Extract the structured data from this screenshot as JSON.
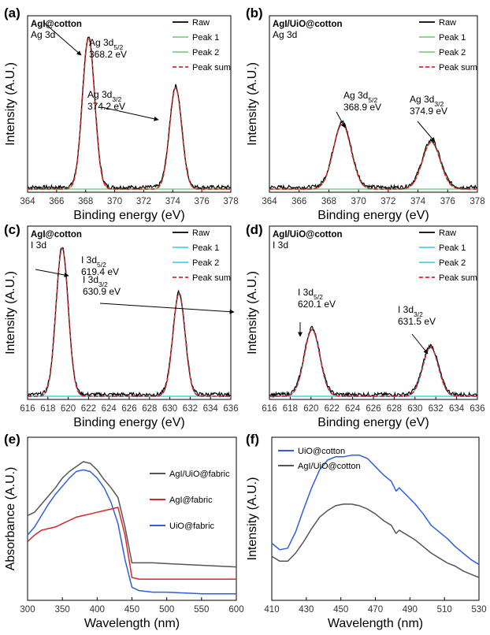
{
  "chart_data": [
    {
      "panel": "(a)",
      "type": "line",
      "sample": "AgI@cotton",
      "region": "Ag 3d",
      "xlabel": "Binding energy (eV)",
      "ylabel": "Intensity (A.U.)",
      "xlim": [
        364,
        378
      ],
      "xticks": [
        "364",
        "366",
        "368",
        "370",
        "372",
        "374",
        "376",
        "378"
      ],
      "peaks": [
        {
          "label_main": "Ag 3d",
          "label_sub": "5/2",
          "label_energy": "368.2 eV",
          "center": 368.2,
          "height": 1.0,
          "width": 0.42
        },
        {
          "label_main": "Ag 3d",
          "label_sub": "3/2",
          "label_energy": "374.2 eV",
          "center": 374.2,
          "height": 0.67,
          "width": 0.42
        }
      ],
      "legend": [
        "Raw",
        "Peak 1",
        "Peak 2",
        "Peak sum"
      ],
      "colors": {
        "raw": "#000000",
        "peak1": "#7fd17f",
        "peak2": "#7fd17f",
        "sum": "#e0262b"
      }
    },
    {
      "panel": "(b)",
      "type": "line",
      "sample": "AgI/UiO@cotton",
      "region": "Ag 3d",
      "xlabel": "Binding energy (eV)",
      "ylabel": "Intensity (A.U.)",
      "xlim": [
        364,
        378
      ],
      "xticks": [
        "364",
        "366",
        "368",
        "370",
        "372",
        "374",
        "376",
        "378"
      ],
      "peaks": [
        {
          "label_main": "Ag 3d",
          "label_sub": "5/2",
          "label_energy": "368.9 eV",
          "center": 368.9,
          "height": 0.43,
          "width": 0.6
        },
        {
          "label_main": "Ag 3d",
          "label_sub": "3/2",
          "label_energy": "374.9 eV",
          "center": 374.9,
          "height": 0.31,
          "width": 0.6
        }
      ],
      "legend": [
        "Raw",
        "Peak 1",
        "Peak 2",
        "Peak sum"
      ],
      "colors": {
        "raw": "#000000",
        "peak1": "#7fd17f",
        "peak2": "#7fd17f",
        "sum": "#e0262b"
      }
    },
    {
      "panel": "(c)",
      "type": "line",
      "sample": "AgI@cotton",
      "region": "I 3d",
      "xlabel": "Binding energy (eV)",
      "ylabel": "Intensity (A.U.)",
      "xlim": [
        616,
        636
      ],
      "xticks": [
        "616",
        "618",
        "620",
        "622",
        "624",
        "626",
        "628",
        "630",
        "632",
        "634",
        "636"
      ],
      "peaks": [
        {
          "label_main": "I 3d",
          "label_sub": "5/2",
          "label_energy": "619.4 eV",
          "center": 619.4,
          "height": 1.0,
          "width": 0.6
        },
        {
          "label_main": "I 3d",
          "label_sub": "3/2",
          "label_energy": "630.9 eV",
          "center": 630.9,
          "height": 0.69,
          "width": 0.6
        }
      ],
      "legend": [
        "Raw",
        "Peak 1",
        "Peak 2",
        "Peak sum"
      ],
      "colors": {
        "raw": "#000000",
        "peak1": "#49d2e8",
        "peak2": "#49d2e8",
        "sum": "#e0262b"
      }
    },
    {
      "panel": "(d)",
      "type": "line",
      "sample": "AgI/UiO@cotton",
      "region": "I 3d",
      "xlabel": "Binding energy (eV)",
      "ylabel": "Intensity (A.U.)",
      "xlim": [
        616,
        636
      ],
      "xticks": [
        "616",
        "618",
        "620",
        "622",
        "624",
        "626",
        "628",
        "630",
        "632",
        "634",
        "636"
      ],
      "peaks": [
        {
          "label_main": "I 3d",
          "label_sub": "5/2",
          "label_energy": "620.1 eV",
          "center": 620.1,
          "height": 0.45,
          "width": 0.75
        },
        {
          "label_main": "I 3d",
          "label_sub": "3/2",
          "label_energy": "631.5 eV",
          "center": 631.5,
          "height": 0.33,
          "width": 0.75
        }
      ],
      "legend": [
        "Raw",
        "Peak 1",
        "Peak 2",
        "Peak sum"
      ],
      "colors": {
        "raw": "#000000",
        "peak1": "#49d2e8",
        "peak2": "#49d2e8",
        "sum": "#e0262b"
      }
    },
    {
      "panel": "(e)",
      "type": "line",
      "xlabel": "Wavelength (nm)",
      "ylabel": "Absorbance (A.U.)",
      "xlim": [
        300,
        600
      ],
      "ylim": [
        0,
        1
      ],
      "xticks": [
        "300",
        "350",
        "400",
        "450",
        "500",
        "550",
        "600"
      ],
      "legend": [
        "AgI/UiO@fabric",
        "AgI@fabric",
        "UiO@fabric"
      ],
      "series": [
        {
          "name": "AgI/UiO@fabric",
          "color": "#555555",
          "x": [
            300,
            310,
            320,
            330,
            340,
            350,
            360,
            370,
            380,
            390,
            400,
            410,
            420,
            430,
            440,
            450,
            460,
            480,
            500,
            550,
            600
          ],
          "y": [
            0.52,
            0.54,
            0.59,
            0.64,
            0.69,
            0.75,
            0.79,
            0.82,
            0.85,
            0.84,
            0.8,
            0.74,
            0.69,
            0.63,
            0.45,
            0.23,
            0.23,
            0.23,
            0.225,
            0.215,
            0.205
          ]
        },
        {
          "name": "AgI@fabric",
          "color": "#d62728",
          "x": [
            300,
            310,
            320,
            330,
            340,
            350,
            360,
            370,
            380,
            390,
            400,
            410,
            420,
            430,
            440,
            450,
            460,
            480,
            500,
            550,
            600
          ],
          "y": [
            0.36,
            0.4,
            0.43,
            0.44,
            0.45,
            0.47,
            0.49,
            0.51,
            0.52,
            0.53,
            0.54,
            0.55,
            0.56,
            0.57,
            0.4,
            0.14,
            0.13,
            0.13,
            0.13,
            0.13,
            0.13
          ]
        },
        {
          "name": "UiO@fabric",
          "color": "#2f5fe0",
          "x": [
            300,
            310,
            320,
            330,
            340,
            350,
            360,
            370,
            380,
            390,
            400,
            410,
            420,
            430,
            440,
            450,
            460,
            480,
            500,
            550,
            600
          ],
          "y": [
            0.4,
            0.45,
            0.52,
            0.59,
            0.65,
            0.7,
            0.75,
            0.79,
            0.8,
            0.79,
            0.75,
            0.69,
            0.6,
            0.47,
            0.25,
            0.08,
            0.06,
            0.05,
            0.05,
            0.04,
            0.04
          ]
        }
      ]
    },
    {
      "panel": "(f)",
      "type": "line",
      "xlabel": "Wavelength (nm)",
      "ylabel": "Intensity (A.U.)",
      "xlim": [
        410,
        540
      ],
      "ylim": [
        0,
        1
      ],
      "xticks": [
        "410",
        "430",
        "450",
        "470",
        "490",
        "510",
        "530"
      ],
      "legend": [
        "UiO@cotton",
        "AgI/UiO@cotton"
      ],
      "series": [
        {
          "name": "UiO@cotton",
          "color": "#2f5fe0",
          "x": [
            410,
            415,
            420,
            425,
            430,
            435,
            440,
            445,
            450,
            455,
            460,
            465,
            470,
            475,
            480,
            485,
            488,
            490,
            495,
            500,
            505,
            510,
            515,
            520,
            525,
            530,
            535,
            540
          ],
          "y": [
            0.35,
            0.31,
            0.32,
            0.42,
            0.56,
            0.69,
            0.8,
            0.86,
            0.88,
            0.88,
            0.89,
            0.89,
            0.87,
            0.82,
            0.77,
            0.73,
            0.67,
            0.69,
            0.64,
            0.59,
            0.53,
            0.46,
            0.42,
            0.38,
            0.33,
            0.29,
            0.25,
            0.22
          ]
        },
        {
          "name": "AgI/UiO@cotton",
          "color": "#555555",
          "x": [
            410,
            415,
            420,
            425,
            430,
            435,
            440,
            445,
            450,
            455,
            460,
            465,
            470,
            475,
            480,
            485,
            488,
            490,
            495,
            500,
            505,
            510,
            515,
            520,
            525,
            530,
            535,
            540
          ],
          "y": [
            0.27,
            0.24,
            0.24,
            0.29,
            0.36,
            0.44,
            0.51,
            0.55,
            0.58,
            0.59,
            0.59,
            0.58,
            0.56,
            0.53,
            0.49,
            0.46,
            0.41,
            0.43,
            0.4,
            0.37,
            0.33,
            0.29,
            0.26,
            0.23,
            0.21,
            0.18,
            0.16,
            0.14
          ]
        }
      ]
    }
  ]
}
